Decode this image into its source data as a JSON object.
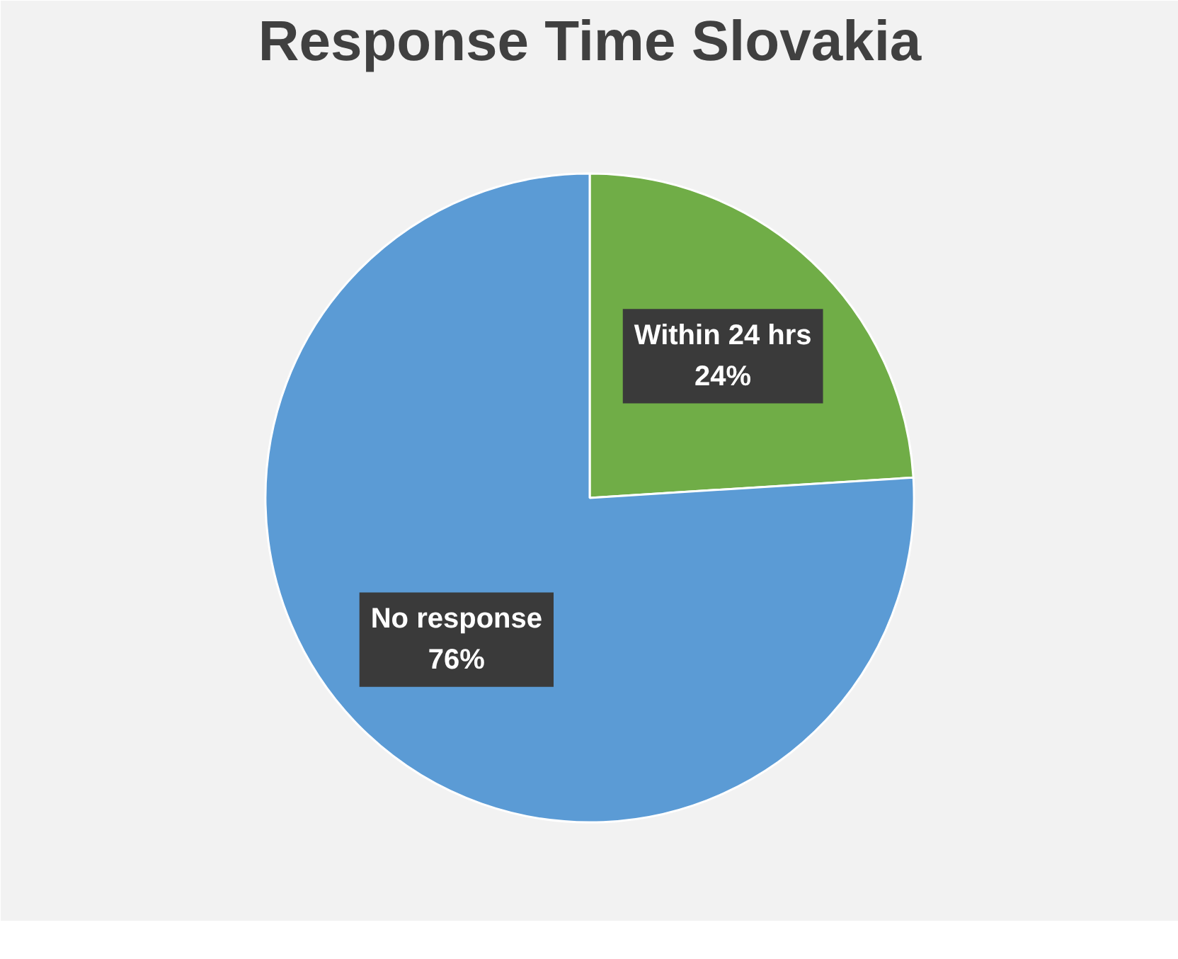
{
  "chart_data": {
    "type": "pie",
    "title": "Response Time Slovakia",
    "categories": [
      "Within 24 hrs",
      "No response"
    ],
    "values": [
      24,
      76
    ],
    "value_labels": [
      "24%",
      "76%"
    ],
    "colors": [
      "#70ad47",
      "#5b9bd5"
    ],
    "legend": false
  }
}
